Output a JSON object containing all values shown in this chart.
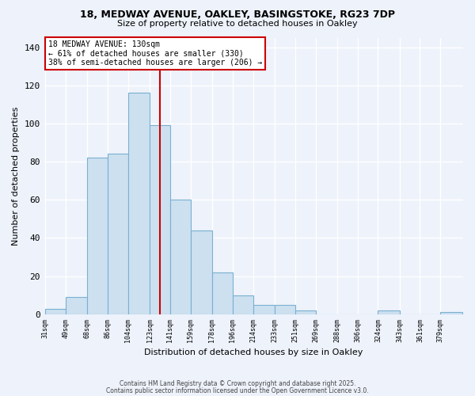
{
  "title1": "18, MEDWAY AVENUE, OAKLEY, BASINGSTOKE, RG23 7DP",
  "title2": "Size of property relative to detached houses in Oakley",
  "xlabel": "Distribution of detached houses by size in Oakley",
  "ylabel": "Number of detached properties",
  "bar_color": "#cce0f0",
  "bar_edge_color": "#7ab0d0",
  "bg_color": "#edf2fb",
  "grid_color": "#ffffff",
  "annotation_box_color": "#ffffff",
  "annotation_border_color": "#cc0000",
  "vline_color": "#cc0000",
  "vline_x": 132,
  "annotation_line1": "18 MEDWAY AVENUE: 130sqm",
  "annotation_line2": "← 61% of detached houses are smaller (330)",
  "annotation_line3": "38% of semi-detached houses are larger (206) →",
  "bins": [
    31,
    49,
    68,
    86,
    104,
    123,
    141,
    159,
    178,
    196,
    214,
    233,
    251,
    269,
    288,
    306,
    324,
    343,
    361,
    379,
    398
  ],
  "counts": [
    3,
    9,
    82,
    84,
    116,
    99,
    60,
    44,
    22,
    10,
    5,
    5,
    2,
    0,
    0,
    0,
    2,
    0,
    0,
    1
  ],
  "ylim": [
    0,
    145
  ],
  "yticks": [
    0,
    20,
    40,
    60,
    80,
    100,
    120,
    140
  ],
  "footer1": "Contains HM Land Registry data © Crown copyright and database right 2025.",
  "footer2": "Contains public sector information licensed under the Open Government Licence v3.0."
}
